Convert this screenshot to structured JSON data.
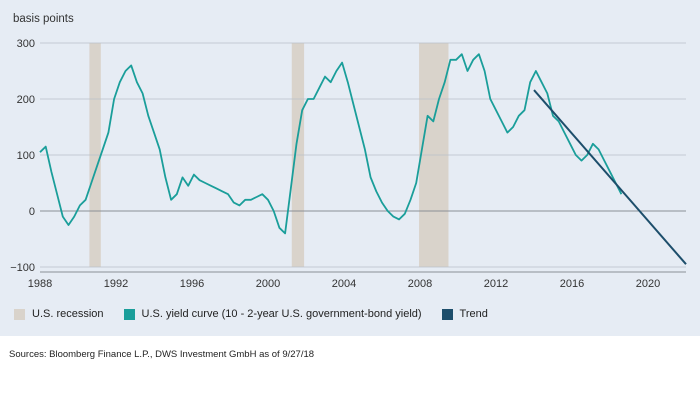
{
  "chart_data": {
    "type": "line",
    "title": "",
    "xlabel": "",
    "ylabel": "basis points",
    "xlim": [
      1988,
      2022
    ],
    "ylim": [
      -100,
      300
    ],
    "x_ticks": [
      1988,
      1992,
      1996,
      2000,
      2004,
      2008,
      2012,
      2016,
      2020
    ],
    "y_ticks": [
      -100,
      0,
      100,
      200,
      300
    ],
    "grid": "horizontal",
    "legend_position": "bottom",
    "recessions": [
      [
        1990.6,
        1991.2
      ],
      [
        2001.25,
        2001.9
      ],
      [
        2007.95,
        2009.5
      ]
    ],
    "series": [
      {
        "name": "U.S. yield curve (10 - 2-year U.S. government-bond yield)",
        "color": "#1a9e9a",
        "x": [
          1988.0,
          1988.3,
          1988.6,
          1988.9,
          1989.2,
          1989.5,
          1989.8,
          1990.1,
          1990.4,
          1990.7,
          1991.0,
          1991.3,
          1991.6,
          1991.9,
          1992.2,
          1992.5,
          1992.8,
          1993.1,
          1993.4,
          1993.7,
          1994.0,
          1994.3,
          1994.6,
          1994.9,
          1995.2,
          1995.5,
          1995.8,
          1996.1,
          1996.4,
          1996.7,
          1997.0,
          1997.3,
          1997.6,
          1997.9,
          1998.2,
          1998.5,
          1998.8,
          1999.1,
          1999.4,
          1999.7,
          2000.0,
          2000.3,
          2000.6,
          2000.9,
          2001.2,
          2001.5,
          2001.8,
          2002.1,
          2002.4,
          2002.7,
          2003.0,
          2003.3,
          2003.6,
          2003.9,
          2004.2,
          2004.5,
          2004.8,
          2005.1,
          2005.4,
          2005.7,
          2006.0,
          2006.3,
          2006.6,
          2006.9,
          2007.2,
          2007.5,
          2007.8,
          2008.1,
          2008.4,
          2008.7,
          2009.0,
          2009.3,
          2009.6,
          2009.9,
          2010.2,
          2010.5,
          2010.8,
          2011.1,
          2011.4,
          2011.7,
          2012.0,
          2012.3,
          2012.6,
          2012.9,
          2013.2,
          2013.5,
          2013.8,
          2014.1,
          2014.4,
          2014.7,
          2015.0,
          2015.3,
          2015.6,
          2015.9,
          2016.2,
          2016.5,
          2016.8,
          2017.1,
          2017.4,
          2017.7,
          2018.0,
          2018.3,
          2018.6
        ],
        "values": [
          105,
          115,
          70,
          30,
          -10,
          -25,
          -10,
          10,
          20,
          50,
          80,
          110,
          140,
          200,
          230,
          250,
          260,
          230,
          210,
          170,
          140,
          110,
          60,
          20,
          30,
          60,
          45,
          65,
          55,
          50,
          45,
          40,
          35,
          30,
          15,
          10,
          20,
          20,
          25,
          30,
          20,
          0,
          -30,
          -40,
          40,
          120,
          180,
          200,
          200,
          220,
          240,
          230,
          250,
          265,
          230,
          190,
          150,
          110,
          60,
          35,
          15,
          0,
          -10,
          -15,
          -5,
          20,
          50,
          110,
          170,
          160,
          200,
          230,
          270,
          270,
          280,
          250,
          270,
          280,
          250,
          200,
          180,
          160,
          140,
          150,
          170,
          180,
          230,
          250,
          230,
          210,
          170,
          160,
          140,
          120,
          100,
          90,
          100,
          120,
          110,
          90,
          70,
          50,
          30
        ]
      },
      {
        "name": "Trend",
        "color": "#1d4e6b",
        "x": [
          2014.0,
          2022.0
        ],
        "values": [
          216,
          -95
        ]
      },
      {
        "name": "U.S. recession",
        "color": "#d9d3cb"
      }
    ]
  },
  "legend": [
    {
      "label": "U.S. recession",
      "color": "#d9d3cb"
    },
    {
      "label": "U.S. yield curve (10 - 2-year U.S. government-bond yield)",
      "color": "#1a9e9a"
    },
    {
      "label": "Trend",
      "color": "#1d4e6b"
    }
  ],
  "source": "Sources: Bloomberg Finance L.P., DWS Investment GmbH as of 9/27/18"
}
